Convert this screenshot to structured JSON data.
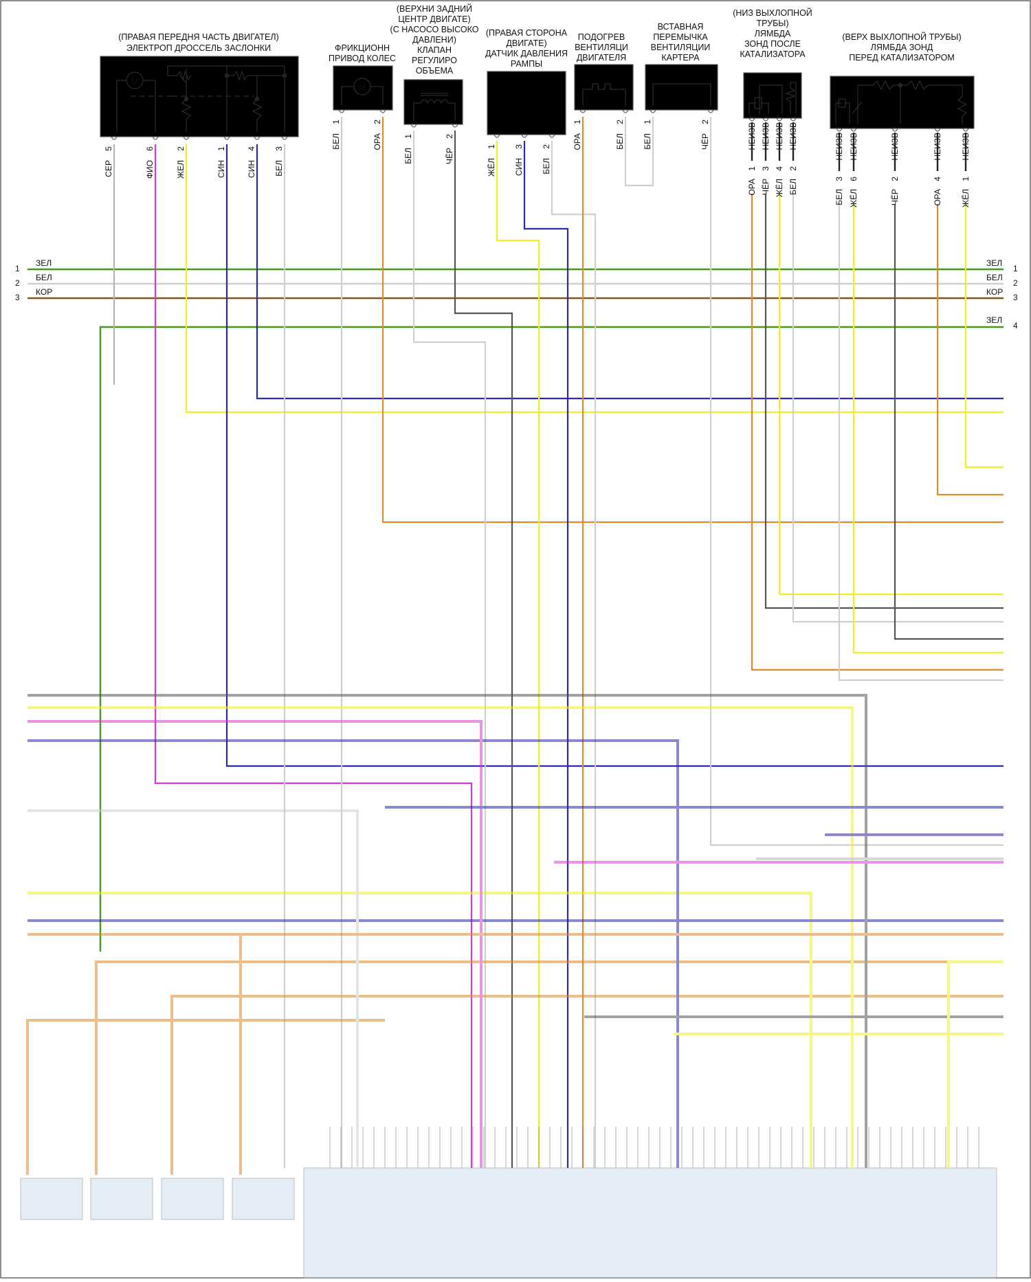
{
  "colors": {
    "green": "#3f9a1e",
    "white": "#cfcfcf",
    "brown": "#7a5a1c",
    "yellow": "#f2ee22",
    "blue": "#2a2aa8",
    "violet": "#d63ad6",
    "orange": "#e08a2e",
    "black": "#555555",
    "grey": "#b5b5b5",
    "box_fill": "#d8e6f2",
    "ecu_fill": "#cfe0f0"
  },
  "components": {
    "throttle": {
      "lines": [
        "(ПРАВАЯ ПЕРЕДНЯ ЧАСТЬ ДВИГАТЕЛ)",
        "ЭЛЕКТРОП ДРОССЕЛЬ ЗАСЛОНКИ"
      ],
      "motor_label": "M",
      "pins": [
        {
          "wire": "СЕР",
          "num": "5"
        },
        {
          "wire": "ФИО",
          "num": "6"
        },
        {
          "wire": "ЖЕЛ",
          "num": "2"
        },
        {
          "wire": "СИН",
          "num": "1"
        },
        {
          "wire": "СИН",
          "num": "4"
        },
        {
          "wire": "БЕЛ",
          "num": "3"
        }
      ]
    },
    "friction": {
      "lines": [
        "ФРИКЦИОНН",
        "ПРИВОД КОЛЕС"
      ],
      "motor_label": "M",
      "pins": [
        {
          "wire": "БЕЛ",
          "num": "1"
        },
        {
          "wire": "ОРА",
          "num": "2"
        }
      ]
    },
    "valve": {
      "lines": [
        "(ВЕРХНИ ЗАДНИЙ",
        "ЦЕНТР ДВИГАТЕ)",
        "(С НАСОСО ВЫСОКО",
        "ДАВЛЕНИ)",
        "КЛАПАН",
        "РЕГУЛИРО",
        "ОБЪЕМА"
      ],
      "pins": [
        {
          "wire": "БЕЛ",
          "num": "1"
        },
        {
          "wire": "ЧЁР",
          "num": "2"
        }
      ]
    },
    "rail": {
      "lines": [
        "(ПРАВАЯ СТОРОНА",
        "ДВИГАТЕ)",
        "ДАТЧИК ДАВЛЕНИЯ",
        "РАМПЫ"
      ],
      "pins": [
        {
          "wire": "ЖЁЛ",
          "num": "1"
        },
        {
          "wire": "СИН",
          "num": "3"
        },
        {
          "wire": "БЕЛ",
          "num": "2"
        }
      ]
    },
    "heater": {
      "lines": [
        "ПОДОГРЕВ",
        "ВЕНТИЛЯЦИ",
        "ДВИГАТЕЛЯ"
      ],
      "pins": [
        {
          "wire": "ОРА",
          "num": "1"
        },
        {
          "wire": "БЕЛ",
          "num": "2"
        }
      ]
    },
    "jumper": {
      "lines": [
        "ВСТАВНАЯ",
        "ПЕРЕМЫЧКА",
        "ВЕНТИЛЯЦИИ",
        "КАРТЕРА"
      ],
      "pins": [
        {
          "wire": "БЕЛ",
          "num": "1"
        },
        {
          "wire": "ЧЁР",
          "num": "2"
        }
      ]
    },
    "lambda_after": {
      "lines": [
        "(НИЗ ВЫХЛОПНОЙ",
        "ТРУБЫ)",
        "ЛЯМБДА",
        "ЗОНД ПОСЛЕ",
        "КАТАЛИЗАТОРА"
      ],
      "pins": [
        {
          "top": "НЕИЗВ",
          "num": "1",
          "wire": "ОРА"
        },
        {
          "top": "НЕИЗВ",
          "num": "3",
          "wire": "ЧЁР"
        },
        {
          "top": "НЕИЗВ",
          "num": "4",
          "wire": "ЖЁЛ"
        },
        {
          "top": "НЕИЗВ",
          "num": "2",
          "wire": "БЕЛ"
        }
      ]
    },
    "lambda_before": {
      "lines": [
        "(ВЕРХ ВЫХЛОПНОЙ ТРУБЫ)",
        "ЛЯМБДА ЗОНД",
        "ПЕРЕД КАТАЛИЗАТОРОМ"
      ],
      "pins": [
        {
          "top": "НЕИЗВ",
          "num": "3",
          "wire": "БЕЛ"
        },
        {
          "top": "НЕИЗВ",
          "num": "6",
          "wire": "ЖЁЛ"
        },
        {
          "top": "НЕИЗВ",
          "num": "2",
          "wire": "ЧЁР"
        },
        {
          "top": "НЕИЗВ",
          "num": "4",
          "wire": "ОРА"
        },
        {
          "top": "НЕИЗВ",
          "num": "1",
          "wire": "ЖЁЛ"
        }
      ]
    }
  },
  "buses": [
    {
      "num": "1",
      "label": "ЗЕЛ",
      "color_key": "green"
    },
    {
      "num": "2",
      "label": "БЕЛ",
      "color_key": "white"
    },
    {
      "num": "3",
      "label": "КОР",
      "color_key": "brown"
    },
    {
      "num": "4",
      "label": "ЗЕЛ",
      "color_key": "green"
    }
  ]
}
